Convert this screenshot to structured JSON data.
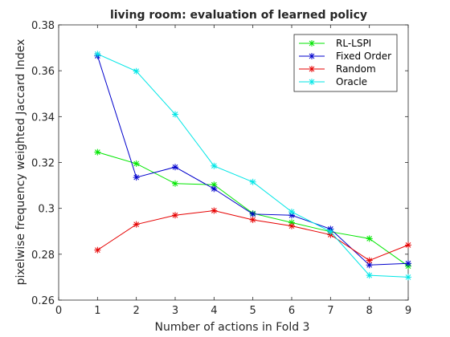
{
  "chart_data": {
    "type": "line",
    "title": "living room: evaluation of learned policy",
    "xlabel": "Number of actions in Fold 3",
    "ylabel": "pixelwise frequency weighted Jaccard Index",
    "xlim": [
      0,
      9
    ],
    "ylim": [
      0.26,
      0.38
    ],
    "x_ticks": [
      "0",
      "1",
      "2",
      "3",
      "4",
      "5",
      "6",
      "7",
      "8",
      "9"
    ],
    "y_ticks": [
      "0.26",
      "0.28",
      "0.3",
      "0.32",
      "0.34",
      "0.36",
      "0.38"
    ],
    "grid": false,
    "legend_position": "top-right",
    "x": [
      1,
      2,
      3,
      4,
      5,
      6,
      7,
      8,
      9
    ],
    "series": [
      {
        "name": "RL-LSPI",
        "color": "#00e600",
        "values": [
          0.3245,
          0.3195,
          0.3108,
          0.3103,
          0.2978,
          0.2938,
          0.2898,
          0.2868,
          0.2748
        ]
      },
      {
        "name": "Fixed Order",
        "color": "#0000cc",
        "values": [
          0.3665,
          0.3135,
          0.318,
          0.3085,
          0.2975,
          0.297,
          0.291,
          0.2753,
          0.276
        ]
      },
      {
        "name": "Random",
        "color": "#e60000",
        "values": [
          0.2818,
          0.293,
          0.297,
          0.299,
          0.295,
          0.2923,
          0.2885,
          0.2773,
          0.284
        ]
      },
      {
        "name": "Oracle",
        "color": "#00e6e6",
        "values": [
          0.3673,
          0.3598,
          0.341,
          0.3185,
          0.3115,
          0.2985,
          0.2898,
          0.2708,
          0.27
        ]
      }
    ]
  }
}
